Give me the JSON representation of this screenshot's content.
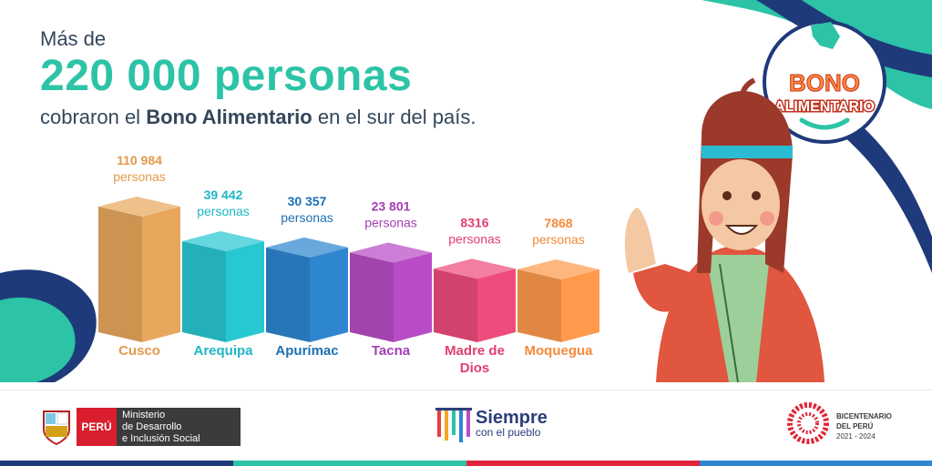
{
  "header": {
    "intro": "Más de",
    "headline": "220 000 personas",
    "sub_pre": "cobraron el ",
    "sub_bold": "Bono Alimentario",
    "sub_post": " en el sur del país."
  },
  "badge": {
    "line1": "BONO",
    "line2": "ALIMENTARIO"
  },
  "chart_data": {
    "type": "bar",
    "categories": [
      "Cusco",
      "Arequipa",
      "Apurímac",
      "Tacna",
      "Madre de Dios",
      "Moquegua"
    ],
    "value_labels": [
      "110 984",
      "39 442",
      "30 357",
      "23 801",
      "8316",
      "7868"
    ],
    "values": [
      110984,
      39442,
      30357,
      23801,
      8316,
      7868
    ],
    "unit_label": "personas",
    "colors": [
      "#e8a75c",
      "#28c8d2",
      "#2e86d0",
      "#b84cc6",
      "#ee4c7c",
      "#ff9a4c"
    ],
    "label_colors": [
      "#e49a4a",
      "#1fb7c4",
      "#1d6fb3",
      "#a33fb5",
      "#e0406f",
      "#f58a3a"
    ]
  },
  "footer": {
    "peru": "PERÚ",
    "ministry_line1": "Ministerio",
    "ministry_line2": "de Desarrollo",
    "ministry_line3": "e Inclusión Social",
    "siempre_main": "Siempre",
    "siempre_sub": "con el pueblo",
    "bicen_line1": "BICENTENARIO",
    "bicen_line2": "DEL PERÚ",
    "bicen_line3": "2021 - 2024"
  }
}
